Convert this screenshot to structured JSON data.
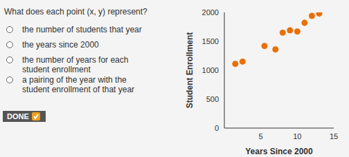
{
  "question": "What does each point (x, y) represent?",
  "options": [
    "the number of students that year",
    "the years since 2000",
    "the number of years for each student enrollment",
    "a pairing of the year with the student enrollment of that year"
  ],
  "button": "DONE",
  "chart_data": {
    "type": "scatter",
    "x_label": "Years Since 2000",
    "y_label": "Student Enrollment",
    "x": [
      1.5,
      2.5,
      5.5,
      7,
      8,
      9,
      10,
      11,
      12,
      13
    ],
    "values": [
      1110,
      1150,
      1420,
      1360,
      1650,
      1690,
      1670,
      1820,
      1940,
      1980
    ],
    "color": "#e8700a",
    "marker": "circle",
    "xlim": [
      0,
      15
    ],
    "xticks": [
      5,
      10,
      15
    ],
    "ylim": [
      0,
      2000
    ],
    "yticks": [
      0,
      500,
      1000,
      1500,
      2000
    ],
    "grid": false
  }
}
